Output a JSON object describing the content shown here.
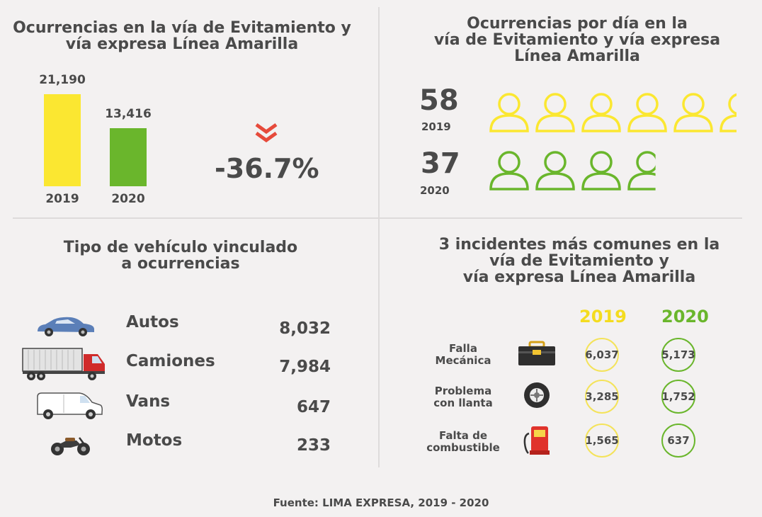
{
  "colors": {
    "y2019": "#fbe731",
    "y2020": "#6ab62c",
    "down": "#e64a3b",
    "text": "#4a4a4a"
  },
  "q1": {
    "title_line1": "Ocurrencias en la vía de Evitamiento y",
    "title_line2": "vía expresa Línea Amarilla",
    "change": "-36.7%",
    "icon": "double-chevron-down-icon"
  },
  "q2": {
    "title_line1": "Ocurrencias por día en la",
    "title_line2": "vía de Evitamiento y vía expresa",
    "title_line3": "Línea Amarilla",
    "rows": [
      {
        "value": "58",
        "year": "2019",
        "icon_count": 5.7
      },
      {
        "value": "37",
        "year": "2020",
        "icon_count": 3.7
      }
    ]
  },
  "q3": {
    "title_line1": "Tipo de vehículo vinculado",
    "title_line2": "a ocurrencias",
    "vehicles": [
      {
        "name": "Autos",
        "value": "8,032",
        "icon": "car-icon"
      },
      {
        "name": "Camiones",
        "value": "7,984",
        "icon": "truck-icon"
      },
      {
        "name": "Vans",
        "value": "647",
        "icon": "van-icon"
      },
      {
        "name": "Motos",
        "value": "233",
        "icon": "motorcycle-icon"
      }
    ]
  },
  "q4": {
    "title_line1": "3 incidentes más comunes en la",
    "title_line2": "vía de Evitamiento y",
    "title_line3": "vía expresa Línea Amarilla",
    "col_2019": "2019",
    "col_2020": "2020",
    "incidents": [
      {
        "line1": "Falla",
        "line2": "Mecánica",
        "v2019": "6,037",
        "v2020": "5,173",
        "icon": "toolbox-icon"
      },
      {
        "line1": "Problema",
        "line2": "con llanta",
        "v2019": "3,285",
        "v2020": "1,752",
        "icon": "tire-icon"
      },
      {
        "line1": "Falta de",
        "line2": "combustible",
        "v2019": "1,565",
        "v2020": "637",
        "icon": "fuel-pump-icon"
      }
    ]
  },
  "source": "Fuente: LIMA EXPRESA, 2019 - 2020",
  "chart_data": {
    "type": "bar",
    "categories": [
      "2019",
      "2020"
    ],
    "values": [
      21190,
      13416
    ],
    "value_labels": [
      "21,190",
      "13,416"
    ],
    "colors": [
      "#fbe731",
      "#6ab62c"
    ],
    "ylim": [
      0,
      21190
    ]
  }
}
